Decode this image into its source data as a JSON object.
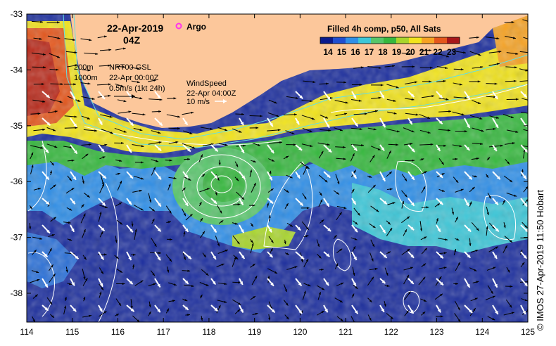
{
  "header": {
    "date": "22-Apr-2019",
    "time": "04Z",
    "argo_label": "Argo",
    "product_label": "Filled 4h comp, p50, All Sats"
  },
  "colorbar": {
    "ticks": [
      "14",
      "15",
      "16",
      "17",
      "18",
      "19",
      "20",
      "21",
      "22",
      "23"
    ],
    "colors": [
      "#0a1a8c",
      "#1f4ed0",
      "#2f8fe8",
      "#3dc7d8",
      "#56c66a",
      "#36b83e",
      "#a9d62c",
      "#f2e41c",
      "#f6a223",
      "#e4561c",
      "#a8171a"
    ]
  },
  "legend": {
    "iso_200": "200m",
    "iso_1000": "1000m",
    "current_title": "NRT00 GSL",
    "current_time": "22-Apr 00:00Z",
    "current_scale": "0.5m/s (1kt 24h)",
    "wind_title": "WindSpeed",
    "wind_time": "22-Apr 04:00Z",
    "wind_scale": "10 m/s"
  },
  "axes": {
    "x_ticks": [
      "114",
      "115",
      "116",
      "117",
      "118",
      "119",
      "120",
      "121",
      "122",
      "123",
      "124",
      "125"
    ],
    "y_ticks": [
      "-33",
      "-34",
      "-35",
      "-36",
      "-37",
      "-38"
    ]
  },
  "colors": {
    "land": "#fcc79b",
    "deep_ocean": "#1c2e9e",
    "argo": "#ff33ee",
    "bathymetry": "#66e0e0"
  },
  "credit": "© IMOS 27-Apr-2019 11:50 Hobart"
}
